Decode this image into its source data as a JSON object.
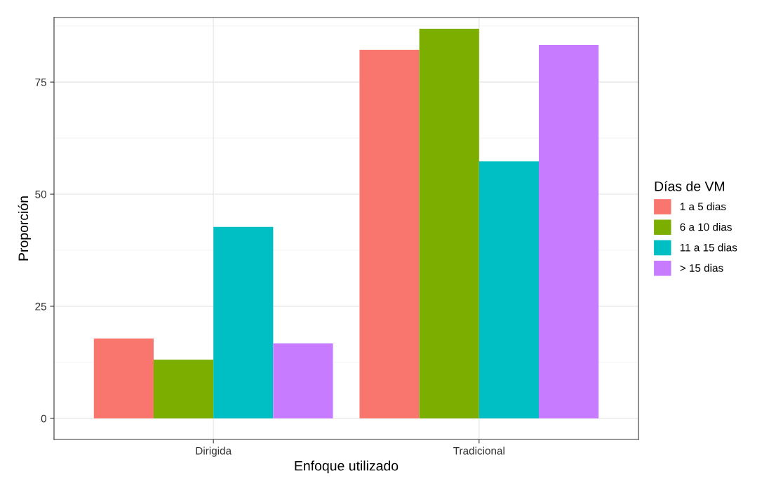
{
  "chart_data": {
    "type": "bar",
    "xlabel": "Enfoque utilizado",
    "ylabel": "Proporción",
    "legend_title": "Días de VM",
    "categories": [
      "Dirigida",
      "Tradicional"
    ],
    "series": [
      {
        "name": "1 a 5 dias",
        "color": "#f8766d",
        "values": [
          17.8,
          82.2
        ]
      },
      {
        "name": "6 a 10 dias",
        "color": "#7cae00",
        "values": [
          13.1,
          86.9
        ]
      },
      {
        "name": "11 a 15 dias",
        "color": "#00bfc4",
        "values": [
          42.7,
          57.3
        ]
      },
      {
        "name": "> 15 dias",
        "color": "#c77cff",
        "values": [
          16.7,
          83.3
        ]
      }
    ],
    "ylim": [
      -4.7,
      89.4
    ],
    "yticks": [
      0,
      25,
      50,
      75
    ],
    "grid": true,
    "legend": "right"
  }
}
